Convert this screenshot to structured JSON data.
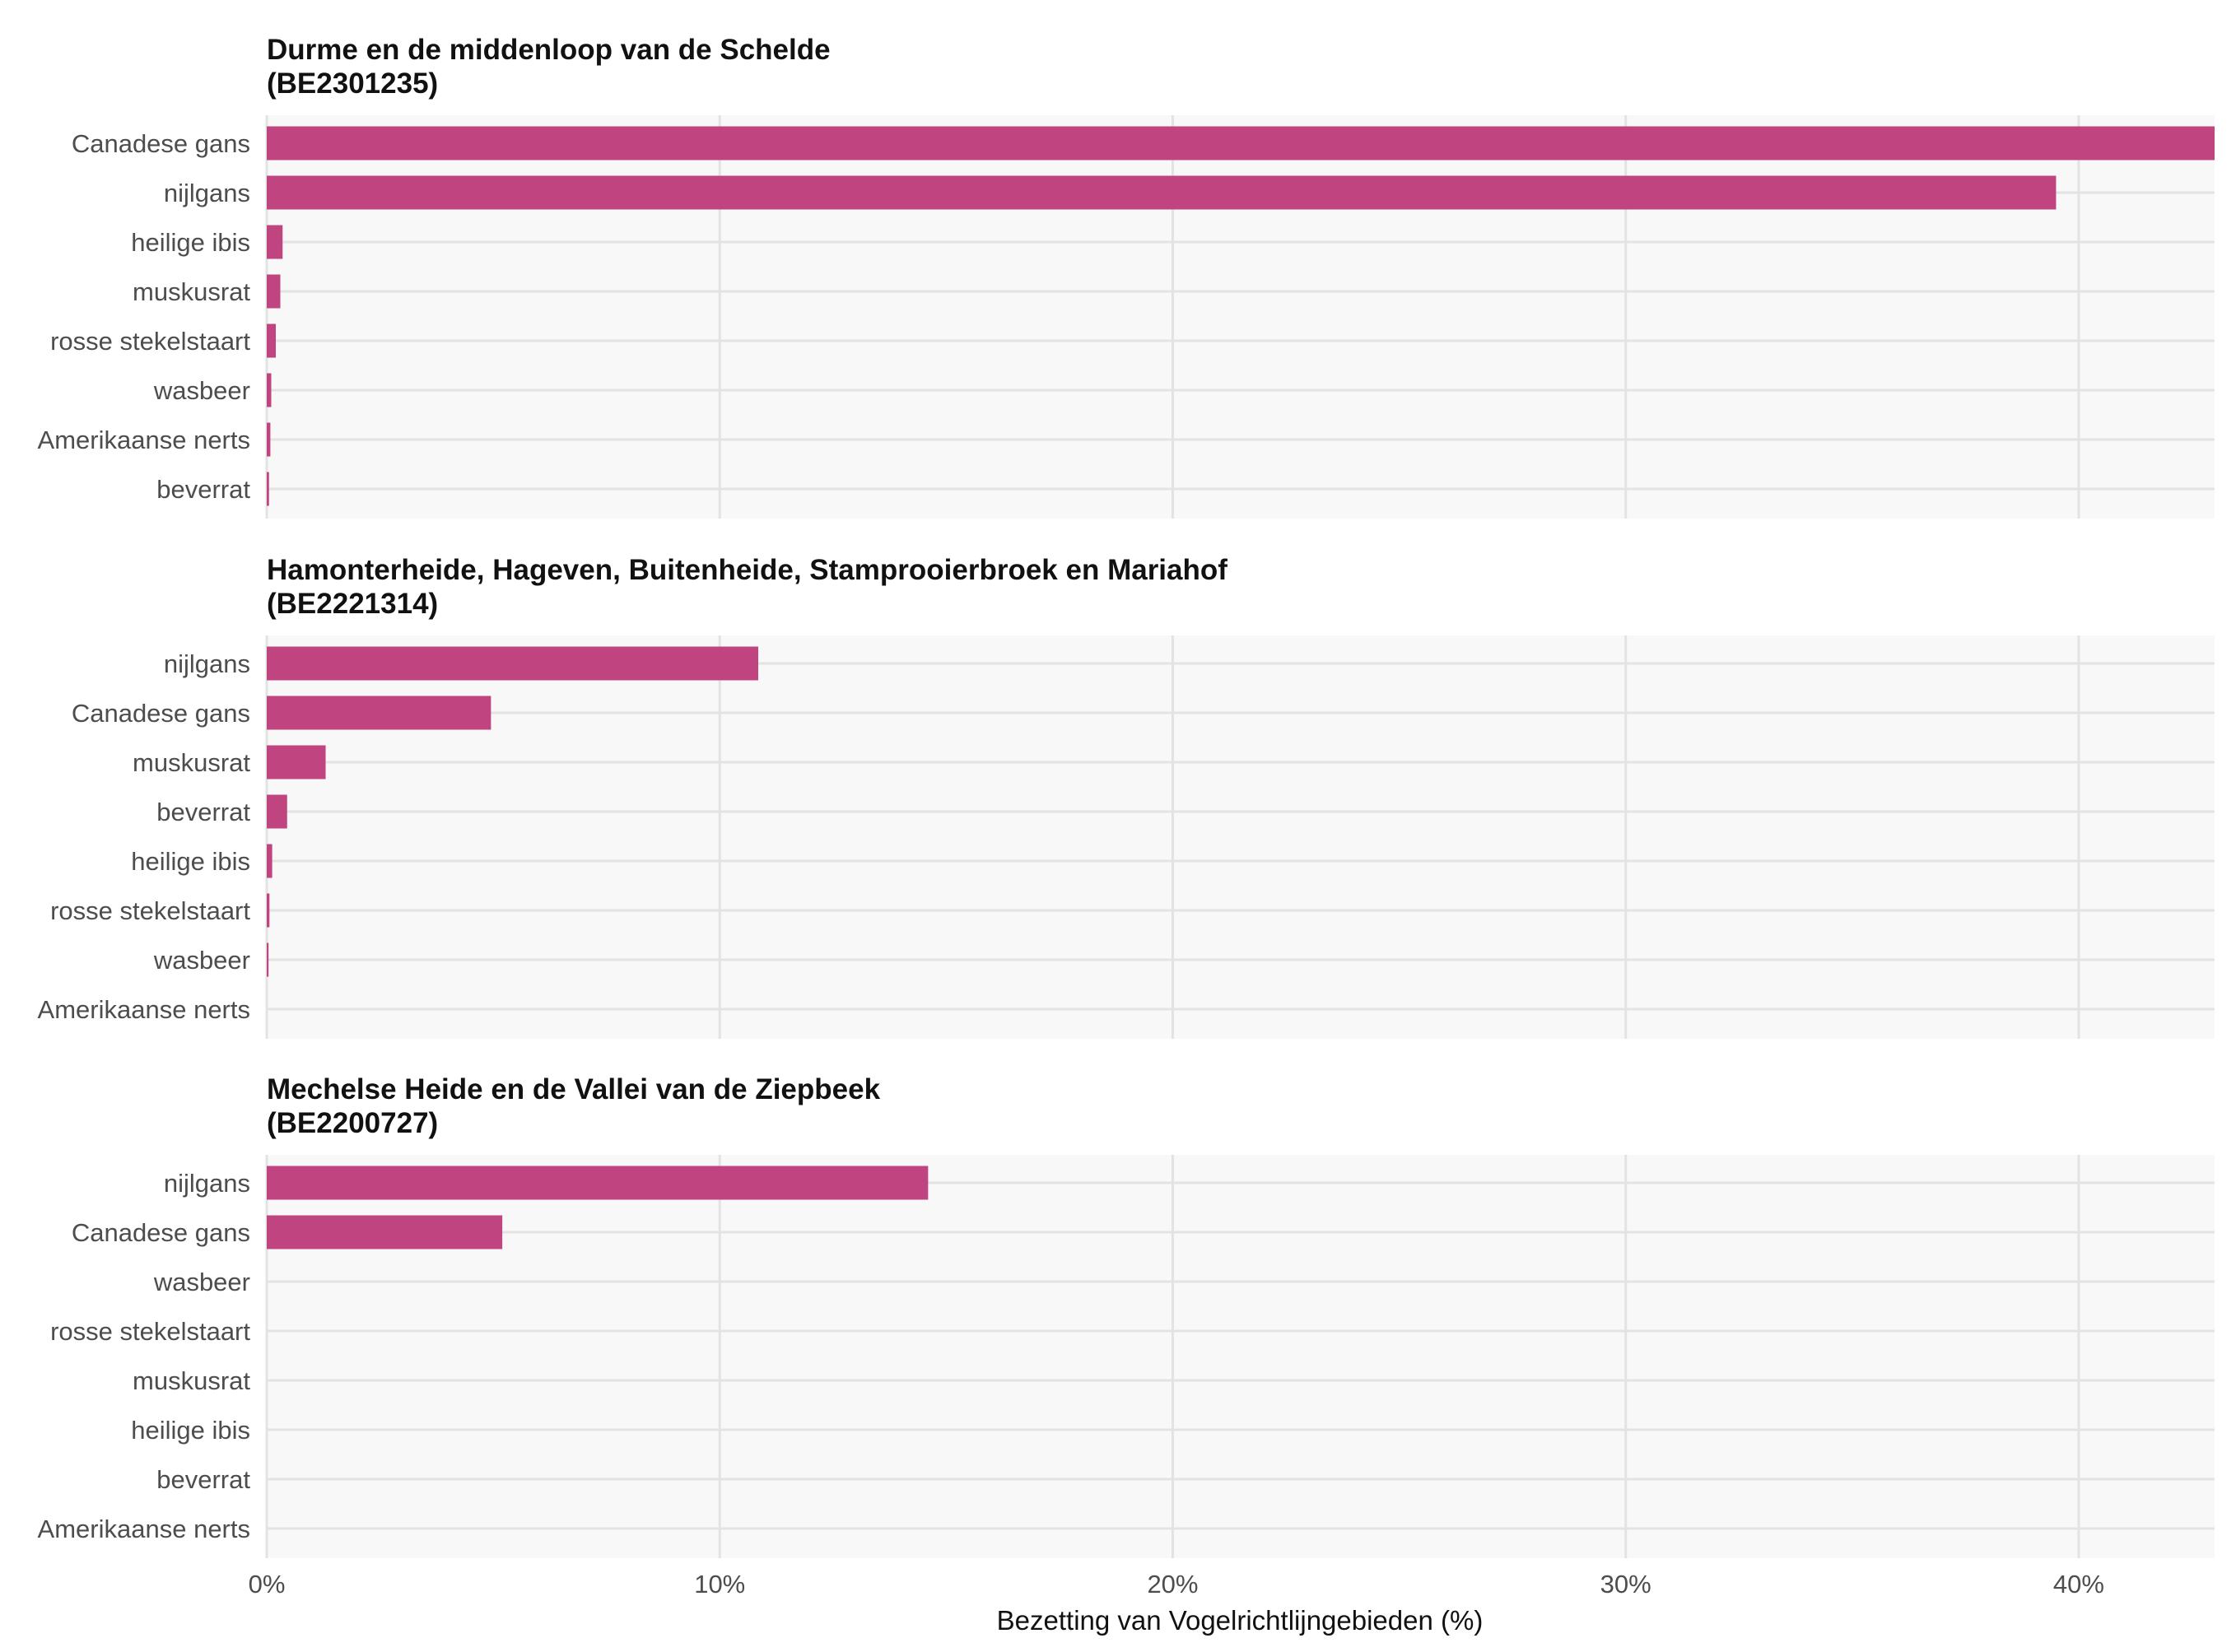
{
  "chart_data": {
    "type": "bar",
    "orientation": "horizontal",
    "xlabel": "Bezetting van Vogelrichtlijngebieden (%)",
    "xlim": [
      0,
      43
    ],
    "x_ticks": [
      0,
      10,
      20,
      30,
      40
    ],
    "x_tick_labels": [
      "0%",
      "10%",
      "20%",
      "30%",
      "40%"
    ],
    "grid": true,
    "bar_color": "#c0447f",
    "panel_background": "#f8f8f8",
    "grid_color": "#e3e3e3",
    "panels": [
      {
        "title": "Durme en de middenloop van de Schelde",
        "subtitle": "(BE2301235)",
        "categories": [
          "Canadese gans",
          "nijlgans",
          "heilige ibis",
          "muskusrat",
          "rosse stekelstaart",
          "wasbeer",
          "Amerikaanse nerts",
          "beverrat"
        ],
        "values": [
          43.0,
          39.5,
          0.35,
          0.3,
          0.2,
          0.1,
          0.08,
          0.05
        ]
      },
      {
        "title": "Hamonterheide, Hageven, Buitenheide, Stamprooierbroek en Mariahof",
        "subtitle": "(BE2221314)",
        "categories": [
          "nijlgans",
          "Canadese gans",
          "muskusrat",
          "beverrat",
          "heilige ibis",
          "rosse stekelstaart",
          "wasbeer",
          "Amerikaanse nerts"
        ],
        "values": [
          10.85,
          4.95,
          1.3,
          0.45,
          0.12,
          0.06,
          0.04,
          0.0
        ]
      },
      {
        "title": "Mechelse Heide en de Vallei van de Ziepbeek",
        "subtitle": "(BE2200727)",
        "categories": [
          "nijlgans",
          "Canadese gans",
          "wasbeer",
          "rosse stekelstaart",
          "muskusrat",
          "heilige ibis",
          "beverrat",
          "Amerikaanse nerts"
        ],
        "values": [
          14.6,
          5.2,
          0.0,
          0.0,
          0.0,
          0.0,
          0.0,
          0.0
        ]
      }
    ]
  }
}
